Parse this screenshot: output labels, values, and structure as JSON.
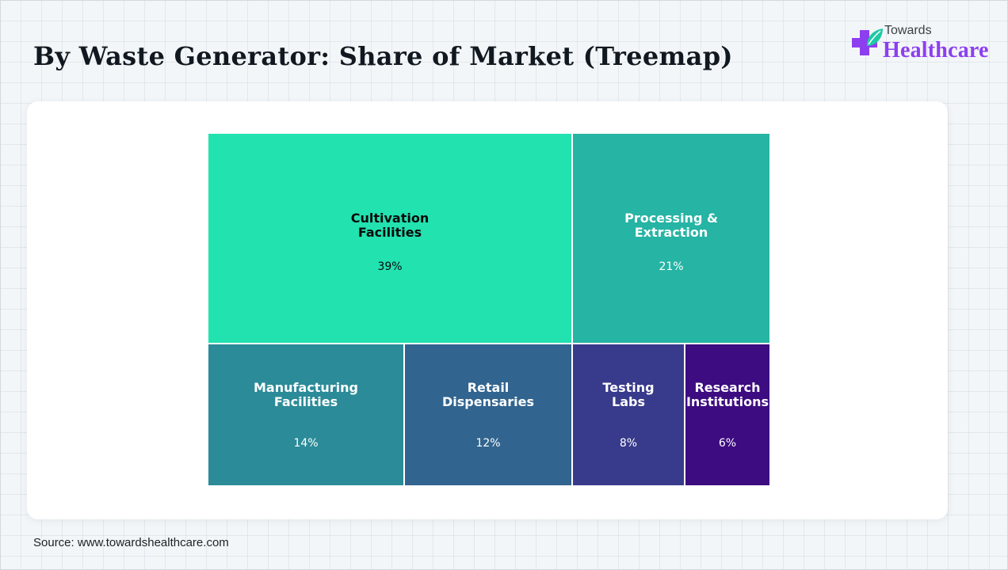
{
  "title": "By Waste Generator: Share of Market (Treemap)",
  "logo": {
    "line1": "Towards",
    "line2": "Healthcare",
    "icon": "medical-cross-leaf-icon",
    "colors": {
      "cross": "#8d3ff0",
      "leaf": "#1ec9a4"
    }
  },
  "source": "Source: www.towardshealthcare.com",
  "chart_data": {
    "type": "treemap",
    "title": "",
    "unit": "%",
    "items": [
      {
        "label": "Cultivation\nFacilities",
        "value": 39,
        "display": "39%",
        "color": "#22e2b0",
        "text_color": "#0a0a0a"
      },
      {
        "label": "Processing &\nExtraction",
        "value": 21,
        "display": "21%",
        "color": "#26b4a4",
        "text_color": "#ffffff"
      },
      {
        "label": "Manufacturing\nFacilities",
        "value": 14,
        "display": "14%",
        "color": "#2b8b98",
        "text_color": "#ffffff"
      },
      {
        "label": "Retail\nDispensaries",
        "value": 12,
        "display": "12%",
        "color": "#31648f",
        "text_color": "#ffffff"
      },
      {
        "label": "Testing\nLabs",
        "value": 8,
        "display": "8%",
        "color": "#383a8b",
        "text_color": "#ffffff"
      },
      {
        "label": "Research\nInstitutions",
        "value": 6,
        "display": "6%",
        "color": "#3d0c80",
        "text_color": "#ffffff"
      }
    ]
  }
}
